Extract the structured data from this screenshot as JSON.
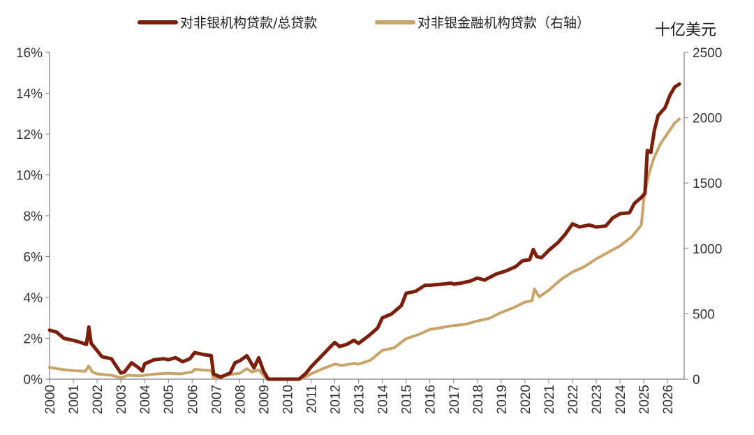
{
  "chart_data": {
    "type": "line",
    "unit_label": "十亿美元",
    "colors": {
      "series1": "#7B1E0A",
      "series2": "#C9A46A",
      "axis": "#7f7f7f"
    },
    "left_axis": {
      "ylim": [
        0,
        16
      ],
      "ticks": [
        "0%",
        "2%",
        "4%",
        "6%",
        "8%",
        "10%",
        "12%",
        "14%",
        "16%"
      ]
    },
    "right_axis": {
      "ylim": [
        0,
        2500
      ],
      "ticks": [
        "0",
        "500",
        "1000",
        "1500",
        "2000",
        "2500"
      ]
    },
    "xlim": [
      2000,
      2026.7
    ],
    "x_ticks": [
      "2000",
      "2001",
      "2002",
      "2003",
      "2004",
      "2005",
      "2006",
      "2007",
      "2008",
      "2009",
      "2010",
      "2011",
      "2012",
      "2013",
      "2014",
      "2015",
      "2016",
      "2017",
      "2018",
      "2019",
      "2020",
      "2021",
      "2022",
      "2023",
      "2024",
      "2025",
      "2026"
    ],
    "series": [
      {
        "name": "对非银机构贷款/总贷款",
        "axis": "left",
        "points": [
          [
            2000.0,
            2.4
          ],
          [
            2000.3,
            2.3
          ],
          [
            2000.6,
            2.0
          ],
          [
            2001.0,
            1.9
          ],
          [
            2001.3,
            1.8
          ],
          [
            2001.55,
            1.7
          ],
          [
            2001.65,
            2.55
          ],
          [
            2001.75,
            1.75
          ],
          [
            2002.0,
            1.4
          ],
          [
            2002.2,
            1.1
          ],
          [
            2002.6,
            1.0
          ],
          [
            2003.0,
            0.3
          ],
          [
            2003.15,
            0.35
          ],
          [
            2003.45,
            0.8
          ],
          [
            2003.7,
            0.6
          ],
          [
            2003.9,
            0.4
          ],
          [
            2004.0,
            0.75
          ],
          [
            2004.4,
            0.95
          ],
          [
            2004.8,
            1.0
          ],
          [
            2005.0,
            0.95
          ],
          [
            2005.3,
            1.05
          ],
          [
            2005.6,
            0.85
          ],
          [
            2005.9,
            1.0
          ],
          [
            2006.1,
            1.3
          ],
          [
            2006.5,
            1.2
          ],
          [
            2006.8,
            1.15
          ],
          [
            2006.9,
            0.25
          ],
          [
            2007.2,
            0.1
          ],
          [
            2007.6,
            0.3
          ],
          [
            2007.8,
            0.8
          ],
          [
            2008.0,
            0.9
          ],
          [
            2008.3,
            1.15
          ],
          [
            2008.6,
            0.55
          ],
          [
            2008.8,
            1.05
          ],
          [
            2009.0,
            0.4
          ],
          [
            2009.2,
            0.0
          ],
          [
            2010.5,
            0.0
          ],
          [
            2010.8,
            0.3
          ],
          [
            2011.0,
            0.6
          ],
          [
            2011.5,
            1.2
          ],
          [
            2012.0,
            1.8
          ],
          [
            2012.2,
            1.6
          ],
          [
            2012.5,
            1.7
          ],
          [
            2012.8,
            1.9
          ],
          [
            2013.0,
            1.75
          ],
          [
            2013.4,
            2.1
          ],
          [
            2013.8,
            2.5
          ],
          [
            2014.0,
            3.0
          ],
          [
            2014.4,
            3.2
          ],
          [
            2014.8,
            3.6
          ],
          [
            2015.0,
            4.2
          ],
          [
            2015.4,
            4.3
          ],
          [
            2015.8,
            4.6
          ],
          [
            2016.0,
            4.6
          ],
          [
            2016.5,
            4.65
          ],
          [
            2016.9,
            4.7
          ],
          [
            2017.0,
            4.65
          ],
          [
            2017.3,
            4.7
          ],
          [
            2017.7,
            4.8
          ],
          [
            2018.0,
            4.95
          ],
          [
            2018.3,
            4.85
          ],
          [
            2018.8,
            5.15
          ],
          [
            2019.2,
            5.3
          ],
          [
            2019.6,
            5.5
          ],
          [
            2019.9,
            5.8
          ],
          [
            2020.2,
            5.85
          ],
          [
            2020.35,
            6.35
          ],
          [
            2020.5,
            6.0
          ],
          [
            2020.7,
            5.95
          ],
          [
            2021.0,
            6.3
          ],
          [
            2021.4,
            6.7
          ],
          [
            2021.7,
            7.1
          ],
          [
            2022.0,
            7.6
          ],
          [
            2022.3,
            7.45
          ],
          [
            2022.7,
            7.55
          ],
          [
            2023.0,
            7.45
          ],
          [
            2023.4,
            7.5
          ],
          [
            2023.7,
            7.9
          ],
          [
            2024.0,
            8.1
          ],
          [
            2024.4,
            8.15
          ],
          [
            2024.6,
            8.6
          ],
          [
            2024.9,
            8.9
          ],
          [
            2025.05,
            9.1
          ],
          [
            2025.15,
            11.2
          ],
          [
            2025.3,
            11.1
          ],
          [
            2025.45,
            12.2
          ],
          [
            2025.6,
            12.9
          ],
          [
            2025.9,
            13.3
          ],
          [
            2026.1,
            13.9
          ],
          [
            2026.3,
            14.3
          ],
          [
            2026.5,
            14.45
          ]
        ]
      },
      {
        "name": "对非银金融机构贷款（右轴）",
        "axis": "right",
        "points": [
          [
            2000.0,
            90
          ],
          [
            2000.5,
            75
          ],
          [
            2001.0,
            65
          ],
          [
            2001.5,
            60
          ],
          [
            2001.65,
            100
          ],
          [
            2001.8,
            55
          ],
          [
            2002.0,
            40
          ],
          [
            2002.6,
            30
          ],
          [
            2003.0,
            10
          ],
          [
            2003.3,
            30
          ],
          [
            2003.8,
            25
          ],
          [
            2004.0,
            30
          ],
          [
            2004.5,
            40
          ],
          [
            2005.0,
            45
          ],
          [
            2005.5,
            40
          ],
          [
            2006.0,
            55
          ],
          [
            2006.1,
            75
          ],
          [
            2006.8,
            65
          ],
          [
            2006.9,
            5
          ],
          [
            2007.2,
            20
          ],
          [
            2007.6,
            35
          ],
          [
            2008.0,
            45
          ],
          [
            2008.3,
            80
          ],
          [
            2008.5,
            55
          ],
          [
            2008.8,
            70
          ],
          [
            2009.0,
            30
          ],
          [
            2009.2,
            0
          ],
          [
            2010.5,
            0
          ],
          [
            2010.8,
            20
          ],
          [
            2011.0,
            40
          ],
          [
            2011.5,
            80
          ],
          [
            2012.0,
            115
          ],
          [
            2012.3,
            105
          ],
          [
            2012.8,
            120
          ],
          [
            2013.0,
            115
          ],
          [
            2013.5,
            145
          ],
          [
            2014.0,
            220
          ],
          [
            2014.5,
            240
          ],
          [
            2015.0,
            310
          ],
          [
            2015.5,
            340
          ],
          [
            2016.0,
            380
          ],
          [
            2016.5,
            395
          ],
          [
            2017.0,
            410
          ],
          [
            2017.5,
            420
          ],
          [
            2018.0,
            445
          ],
          [
            2018.5,
            465
          ],
          [
            2019.0,
            510
          ],
          [
            2019.5,
            545
          ],
          [
            2020.0,
            590
          ],
          [
            2020.3,
            600
          ],
          [
            2020.4,
            690
          ],
          [
            2020.6,
            630
          ],
          [
            2021.0,
            680
          ],
          [
            2021.5,
            760
          ],
          [
            2022.0,
            820
          ],
          [
            2022.5,
            860
          ],
          [
            2023.0,
            920
          ],
          [
            2023.5,
            970
          ],
          [
            2024.0,
            1020
          ],
          [
            2024.5,
            1090
          ],
          [
            2024.9,
            1180
          ],
          [
            2025.0,
            1380
          ],
          [
            2025.2,
            1560
          ],
          [
            2025.4,
            1680
          ],
          [
            2025.7,
            1800
          ],
          [
            2026.0,
            1880
          ],
          [
            2026.3,
            1960
          ],
          [
            2026.5,
            1990
          ]
        ]
      }
    ]
  }
}
